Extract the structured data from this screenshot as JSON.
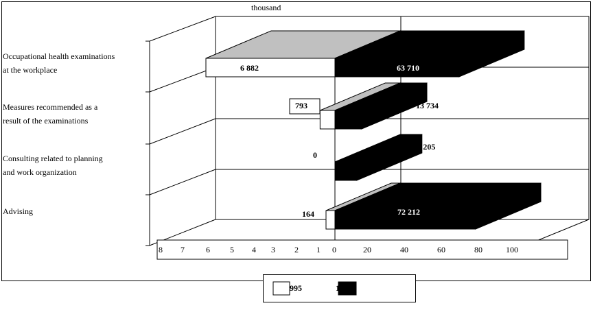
{
  "chart_data": {
    "type": "bar",
    "orientation": "horizontal",
    "three_d": true,
    "unit_label": "thousand",
    "categories": [
      "Occupational health examinations at the workplace",
      "Measures recommended as a result of the examinations",
      "Consulting related to planning and work organization",
      "Advising"
    ],
    "category_lines": [
      [
        "Occupational health examinations",
        "at the workplace"
      ],
      [
        "Measures recommended as a",
        "result of the examinations"
      ],
      [
        "Consulting related to planning",
        "and work organization"
      ],
      [
        "Advising"
      ]
    ],
    "series": [
      {
        "name": "1995",
        "color": "#ffffff",
        "side": "left",
        "values": [
          6882,
          793,
          0,
          164
        ]
      },
      {
        "name": "19..",
        "color": "#000000",
        "side": "right",
        "values": [
          63710,
          13734,
          11205,
          72212
        ]
      }
    ],
    "value_labels": {
      "left": [
        "6 882",
        "793",
        "0",
        "164"
      ],
      "right": [
        "63 710",
        "13 734",
        "11 205",
        "72 212"
      ]
    },
    "left_axis_ticks": [
      "8",
      "7",
      "6",
      "5",
      "4",
      "3",
      "2",
      "1"
    ],
    "right_axis_ticks": [
      "0",
      "20",
      "40",
      "60",
      "80",
      "100"
    ],
    "grid": true,
    "legend_position": "bottom",
    "legend_labels": [
      "995",
      "1"
    ]
  }
}
